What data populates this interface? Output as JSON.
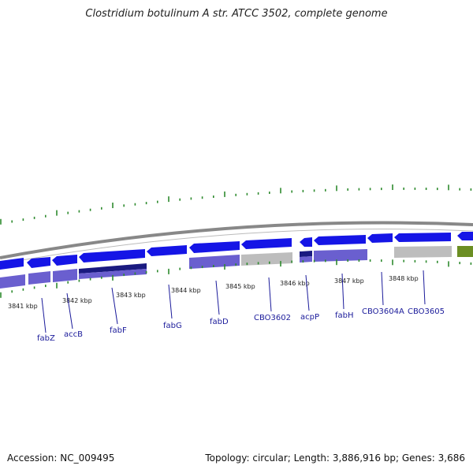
{
  "title": "Clostridium botulinum A str. ATCC 3502, complete genome",
  "footer": {
    "accession": "Accession: NC_009495",
    "summary": "Topology: circular; Length: 3,886,916 bp; Genes: 3,686"
  },
  "scale_labels": [
    "3841 kbp",
    "3842 kbp",
    "3843 kbp",
    "3844 kbp",
    "3845 kbp",
    "3846 kbp",
    "3847 kbp",
    "3848 kbp"
  ],
  "gene_labels": [
    "fabZ",
    "accB",
    "fabF",
    "fabG",
    "fabD",
    "CBO3602",
    "acpP",
    "fabH",
    "CBO3604A",
    "CBO3605"
  ],
  "colors": {
    "gene_blue": "#1515e6",
    "purple": "#6a5fcf",
    "navy": "#1a1a80",
    "grey": "#bdbdbd",
    "green": "#6b8e23",
    "tick_green": "#2e8b2e",
    "backbone": "#888888"
  }
}
